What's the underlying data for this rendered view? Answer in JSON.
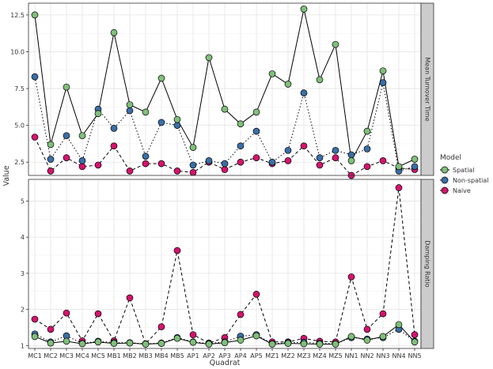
{
  "chart_data": {
    "type": "line",
    "xlabel": "Quadrat",
    "ylabel": "Value",
    "categories": [
      "MC1",
      "MC2",
      "MC3",
      "MC4",
      "MC5",
      "MB1",
      "MB2",
      "MB3",
      "MB4",
      "MB5",
      "AP1",
      "AP2",
      "AP3",
      "AP4",
      "AP5",
      "MZ1",
      "MZ2",
      "MZ3",
      "MZ4",
      "MZ5",
      "NN1",
      "NN2",
      "NN3",
      "NN4",
      "NN5"
    ],
    "legend": {
      "title": "Model",
      "position": "right",
      "entries": [
        {
          "name": "Spatial",
          "color": "#7fbf7b",
          "linestyle": "solid"
        },
        {
          "name": "Non-spatial",
          "color": "#3a6fa8",
          "linestyle": "dotted"
        },
        {
          "name": "Naive",
          "color": "#d4146e",
          "linestyle": "dashed"
        }
      ]
    },
    "panels": [
      {
        "strip": "Mean Turnover Time",
        "ylim": [
          1.6,
          13.3
        ],
        "yticks": [
          2.5,
          5.0,
          7.5,
          10.0,
          12.5
        ],
        "ytick_labels": [
          "2.5",
          "5.0",
          "7.5",
          "10.0",
          "12.5"
        ],
        "series": [
          {
            "name": "Spatial",
            "values": [
              12.5,
              3.7,
              7.6,
              4.3,
              5.8,
              11.3,
              6.4,
              5.9,
              8.2,
              5.4,
              3.5,
              9.6,
              6.1,
              5.1,
              5.9,
              8.5,
              7.8,
              12.9,
              8.1,
              10.5,
              2.6,
              4.6,
              8.7,
              2.2,
              2.7
            ]
          },
          {
            "name": "Non-spatial",
            "values": [
              8.3,
              2.7,
              4.3,
              2.6,
              6.1,
              4.8,
              6.0,
              2.9,
              5.2,
              5.0,
              2.3,
              2.6,
              2.4,
              3.6,
              4.6,
              2.5,
              3.3,
              7.2,
              2.8,
              3.3,
              3.0,
              3.4,
              7.9,
              1.9,
              2.2
            ]
          },
          {
            "name": "Naive",
            "values": [
              4.2,
              1.9,
              2.8,
              2.2,
              2.3,
              3.6,
              1.9,
              2.4,
              2.4,
              1.9,
              1.8,
              2.5,
              2.0,
              2.5,
              2.8,
              2.4,
              2.6,
              3.6,
              2.3,
              2.8,
              1.6,
              2.2,
              2.6,
              2.1,
              2.0
            ]
          }
        ]
      },
      {
        "strip": "Damping Ratio",
        "ylim": [
          0.92,
          5.6
        ],
        "yticks": [
          1,
          2,
          3,
          4,
          5
        ],
        "ytick_labels": [
          "1",
          "2",
          "3",
          "4",
          "5"
        ],
        "series": [
          {
            "name": "Spatial",
            "values": [
              1.25,
              1.07,
              1.12,
              1.05,
              1.1,
              1.06,
              1.07,
              1.04,
              1.06,
              1.2,
              1.09,
              1.04,
              1.08,
              1.15,
              1.27,
              1.04,
              1.06,
              1.05,
              1.04,
              1.04,
              1.25,
              1.15,
              1.25,
              1.58,
              1.1
            ]
          },
          {
            "name": "Non-spatial",
            "values": [
              1.32,
              1.1,
              1.27,
              1.06,
              1.12,
              1.08,
              1.08,
              1.05,
              1.07,
              1.22,
              1.1,
              1.06,
              1.1,
              1.26,
              1.3,
              1.05,
              1.08,
              1.09,
              1.06,
              1.05,
              1.22,
              1.18,
              1.22,
              1.45,
              1.12
            ]
          },
          {
            "name": "Naive",
            "values": [
              1.73,
              1.45,
              1.9,
              1.13,
              1.88,
              1.13,
              2.32,
              1.05,
              1.52,
              3.63,
              1.3,
              1.07,
              1.22,
              1.86,
              2.42,
              1.1,
              1.1,
              1.2,
              1.12,
              1.1,
              2.9,
              1.45,
              1.88,
              5.37,
              1.3
            ]
          }
        ]
      }
    ]
  }
}
